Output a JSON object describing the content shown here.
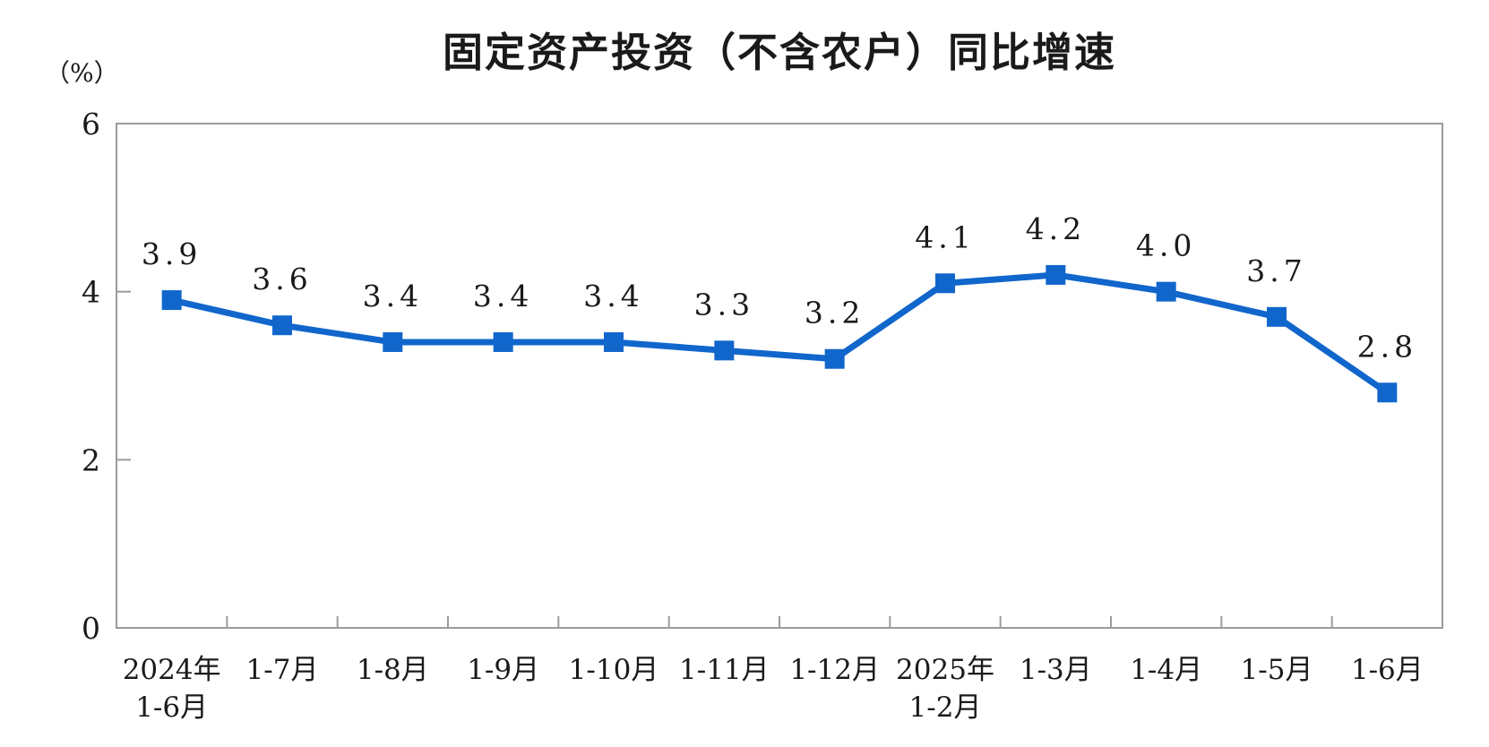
{
  "chart_data": {
    "type": "line",
    "title": "固定资产投资（不含农户）同比增速",
    "ylabel_unit": "（%）",
    "categories": [
      "2024年\n1-6月",
      "1-7月",
      "1-8月",
      "1-9月",
      "1-10月",
      "1-11月",
      "1-12月",
      "2025年\n1-2月",
      "1-3月",
      "1-4月",
      "1-5月",
      "1-6月"
    ],
    "values": [
      3.9,
      3.6,
      3.4,
      3.4,
      3.4,
      3.3,
      3.2,
      4.1,
      4.2,
      4.0,
      3.7,
      2.8
    ],
    "data_labels": [
      "3.9",
      "3.6",
      "3.4",
      "3.4",
      "3.4",
      "3.3",
      "3.2",
      "4.1",
      "4.2",
      "4.0",
      "3.7",
      "2.8"
    ],
    "xlabel": "",
    "ylabel": "",
    "ylim": [
      0,
      6
    ],
    "yticks": [
      0,
      2,
      4,
      6
    ],
    "grid": false,
    "legend_position": "none",
    "marker": "square",
    "colors": {
      "line": "#1166CC",
      "marker": "#1166CC",
      "axis": "#9b9b9b",
      "text": "#1a1a1a"
    }
  }
}
